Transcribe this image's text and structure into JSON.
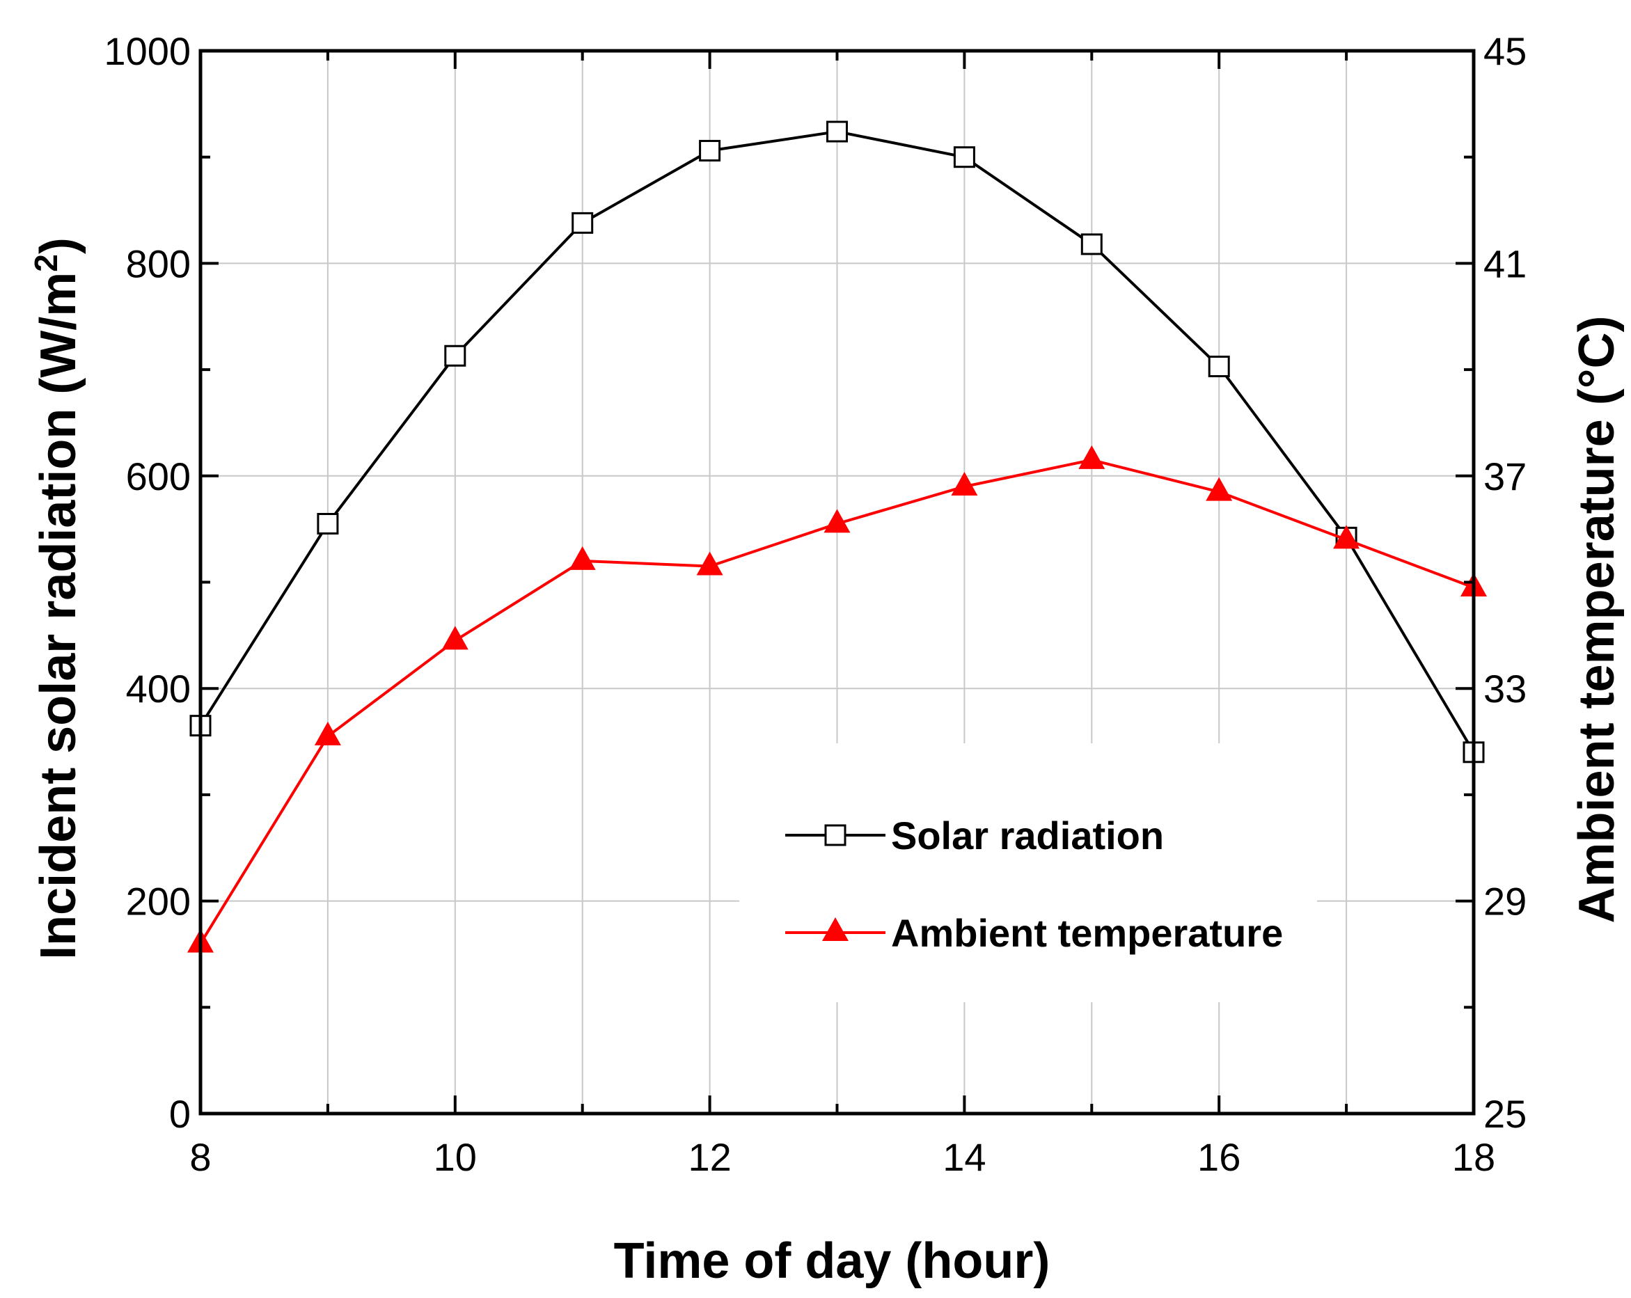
{
  "chart_data": {
    "type": "line",
    "x": [
      8,
      9,
      10,
      11,
      12,
      13,
      14,
      15,
      16,
      17,
      18
    ],
    "xlim": [
      8,
      18
    ],
    "x_ticks": [
      8,
      10,
      12,
      14,
      16,
      18
    ],
    "x_tick_labels": [
      "8",
      "10",
      "12",
      "14",
      "16",
      "18"
    ],
    "xlabel": "Time of day (hour)",
    "ylabel_left": "Incident solar radiation (W/m²)",
    "ylabel_left_main": "Incident solar radiation (W/m",
    "ylabel_left_sup": "2",
    "ylabel_left_tail": ")",
    "ylim_left": [
      0,
      1000
    ],
    "y_left_ticks": [
      0,
      200,
      400,
      600,
      800,
      1000
    ],
    "y_left_tick_labels": [
      "0",
      "200",
      "400",
      "600",
      "800",
      "1000"
    ],
    "ylabel_right": "Ambient temperature (°C)",
    "ylim_right": [
      25,
      45
    ],
    "y_right_ticks": [
      25,
      29,
      33,
      37,
      41,
      45
    ],
    "y_right_tick_labels": [
      "25",
      "29",
      "33",
      "37",
      "41",
      "45"
    ],
    "grid": true,
    "legend_position": "lower-center",
    "series": [
      {
        "name": "Solar radiation",
        "axis": "left",
        "marker": "open-square",
        "color": "#000000",
        "values": [
          365,
          555,
          713,
          838,
          906,
          924,
          900,
          818,
          703,
          542,
          340
        ]
      },
      {
        "name": "Ambient temperature",
        "axis": "right",
        "marker": "filled-triangle",
        "color": "#ff0000",
        "values": [
          28.2,
          32.1,
          33.9,
          35.4,
          35.3,
          36.1,
          36.8,
          37.3,
          36.7,
          35.8,
          34.9
        ]
      }
    ]
  }
}
